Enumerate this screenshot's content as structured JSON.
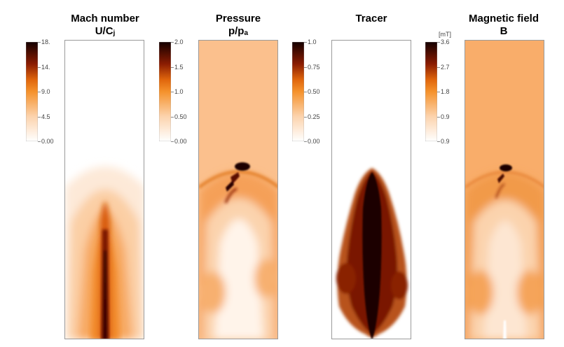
{
  "colors": {
    "low": "#ffffff",
    "mid": "#f58a1f",
    "high": "#6b0d00",
    "max": "#1a0000",
    "pressure_bg": "#fbc08d",
    "magnetic_bg": "#f9ad6a"
  },
  "panels": [
    {
      "id": "mach",
      "title": "Mach number",
      "symbol_main": "U/C",
      "symbol_sub": "j",
      "unit": "",
      "ticks": [
        "18.",
        "14.",
        "9.0",
        "4.5",
        "0.00"
      ]
    },
    {
      "id": "pressure",
      "title": "Pressure",
      "symbol_main": "p/p",
      "symbol_sub": "a",
      "unit": "",
      "ticks": [
        "2.0",
        "1.5",
        "1.0",
        "0.50",
        "0.00"
      ]
    },
    {
      "id": "tracer",
      "title": "Tracer",
      "symbol_main": "",
      "symbol_sub": "",
      "unit": "",
      "ticks": [
        "1.0",
        "0.75",
        "0.50",
        "0.25",
        "0.00"
      ]
    },
    {
      "id": "magnetic",
      "title": "Magnetic field",
      "symbol_main": "B",
      "symbol_sub": "",
      "unit": "[mT]",
      "ticks": [
        "3.6",
        "2.7",
        "1.8",
        "0.9",
        "0.9"
      ]
    }
  ]
}
